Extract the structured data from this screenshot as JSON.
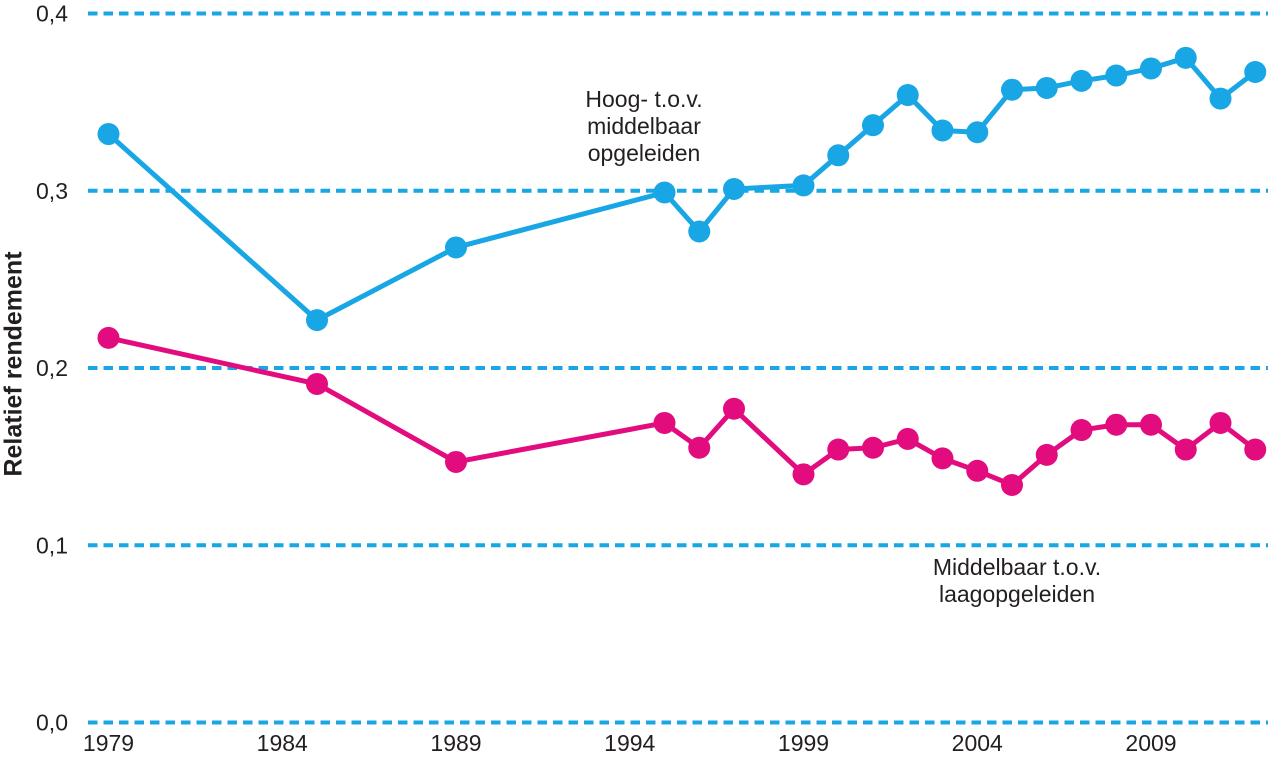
{
  "colors": {
    "series_high_vs_middle": "#18a6e4",
    "series_middle_vs_low": "#e20c7e",
    "gridline": "#18a6e4",
    "text": "#231f20",
    "background": "#ffffff"
  },
  "y_axis": {
    "label": "Relatief rendement",
    "tick_labels": [
      "0,0",
      "0,1",
      "0,2",
      "0,3",
      "0,4"
    ]
  },
  "x_axis": {
    "tick_labels": [
      "1979",
      "1984",
      "1989",
      "1994",
      "1999",
      "2004",
      "2009"
    ]
  },
  "chart_data": {
    "type": "line",
    "title": "",
    "xlabel": "",
    "ylabel": "Relatief rendement",
    "ylim": [
      0.0,
      0.4
    ],
    "xlim": [
      1978,
      2013
    ],
    "grid": "horizontal-dotted-blue",
    "legend_position": "inline-annotations",
    "yticks": [
      {
        "value": 0.0,
        "label": "0,0"
      },
      {
        "value": 0.1,
        "label": "0,1"
      },
      {
        "value": 0.2,
        "label": "0,2"
      },
      {
        "value": 0.3,
        "label": "0,3"
      },
      {
        "value": 0.4,
        "label": "0,4"
      }
    ],
    "xticks": [
      {
        "value": 1979,
        "label": "1979"
      },
      {
        "value": 1984,
        "label": "1984"
      },
      {
        "value": 1989,
        "label": "1989"
      },
      {
        "value": 1994,
        "label": "1994"
      },
      {
        "value": 1999,
        "label": "1999"
      },
      {
        "value": 2004,
        "label": "2004"
      },
      {
        "value": 2009,
        "label": "2009"
      }
    ],
    "x": [
      1979,
      1985,
      1989,
      1995,
      1996,
      1997,
      1999,
      2000,
      2001,
      2002,
      2003,
      2004,
      2005,
      2006,
      2007,
      2008,
      2009,
      2010,
      2011,
      2012
    ],
    "series": [
      {
        "name": "Hoog- t.o.v. middelbaar opgeleiden",
        "color": "#18a6e4",
        "values": [
          0.332,
          0.227,
          0.268,
          0.299,
          0.277,
          0.301,
          0.303,
          0.32,
          0.337,
          0.354,
          0.334,
          0.333,
          0.357,
          0.358,
          0.362,
          0.365,
          0.369,
          0.375,
          0.352,
          0.367
        ],
        "annotation_lines": [
          "Hoog- t.o.v.",
          "middelbaar",
          "opgeleiden"
        ]
      },
      {
        "name": "Middelbaar t.o.v. laagopgeleiden",
        "color": "#e20c7e",
        "values": [
          0.217,
          0.191,
          0.147,
          0.169,
          0.155,
          0.177,
          0.14,
          0.154,
          0.155,
          0.16,
          0.149,
          0.142,
          0.134,
          0.151,
          0.165,
          0.168,
          0.168,
          0.154,
          0.169,
          0.154
        ],
        "annotation_lines": [
          "Middelbaar t.o.v.",
          "laagopgeleiden"
        ]
      }
    ]
  }
}
